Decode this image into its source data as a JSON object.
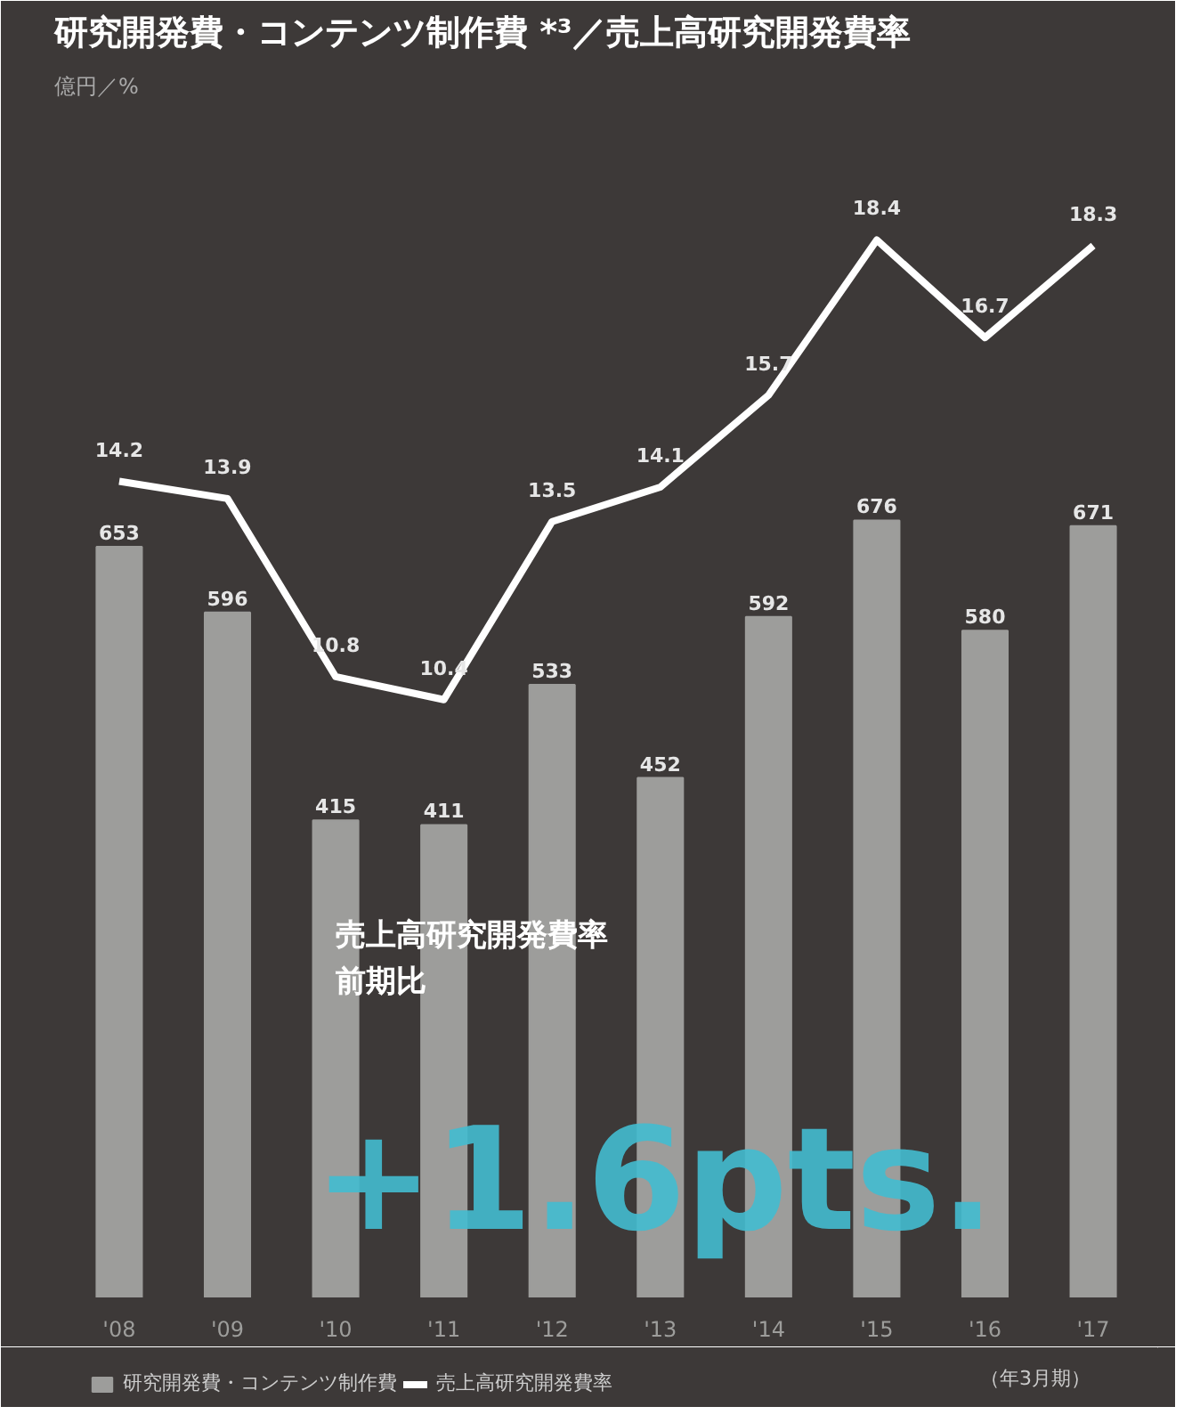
{
  "chart_data": {
    "type": "bar",
    "title": "研究開発費・コンテンツ制作費 *³／売上高研究開発費率",
    "subtitle": "億円／%",
    "categories": [
      "'08",
      "'09",
      "'10",
      "'11",
      "'12",
      "'13",
      "'14",
      "'15",
      "'16",
      "'17"
    ],
    "series": [
      {
        "name": "研究開発費・コンテンツ制作費",
        "color": "#9d9d9b",
        "values": [
          653,
          596,
          415,
          411,
          533,
          452,
          592,
          676,
          580,
          671
        ]
      },
      {
        "name": "売上高研究開発費率",
        "type": "line",
        "axis": "y2",
        "color": "#ffffff",
        "values": [
          14.2,
          13.9,
          10.8,
          10.4,
          13.5,
          14.1,
          15.7,
          18.4,
          16.7,
          18.3
        ]
      }
    ],
    "ylim": [
      0,
      1035
    ],
    "y2lim": [
      0,
      20.7
    ],
    "tick_labels": "x",
    "grid": false,
    "legend": "bottom",
    "data_labels": true,
    "marker": "none",
    "line_style": "solid",
    "annotations": [
      "売上高研究開発費率",
      "前期比",
      "+1.6pts.",
      "（年3月期）"
    ]
  }
}
